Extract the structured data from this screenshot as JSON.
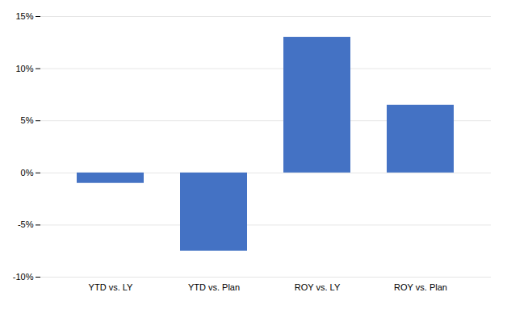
{
  "chart_data": {
    "type": "bar",
    "categories": [
      "YTD vs. LY",
      "YTD vs. Plan",
      "ROY vs. LY",
      "ROY vs. Plan"
    ],
    "values": [
      -1.0,
      -7.5,
      13.0,
      6.5
    ],
    "color": "#4472C4",
    "ylim": [
      -10,
      15
    ],
    "yticks": [
      {
        "value": -10,
        "label": "-10%"
      },
      {
        "value": -5,
        "label": "-5%"
      },
      {
        "value": 0,
        "label": "0%"
      },
      {
        "value": 5,
        "label": "5%"
      },
      {
        "value": 10,
        "label": "10%"
      },
      {
        "value": 15,
        "label": "15%"
      }
    ],
    "grid": true
  }
}
